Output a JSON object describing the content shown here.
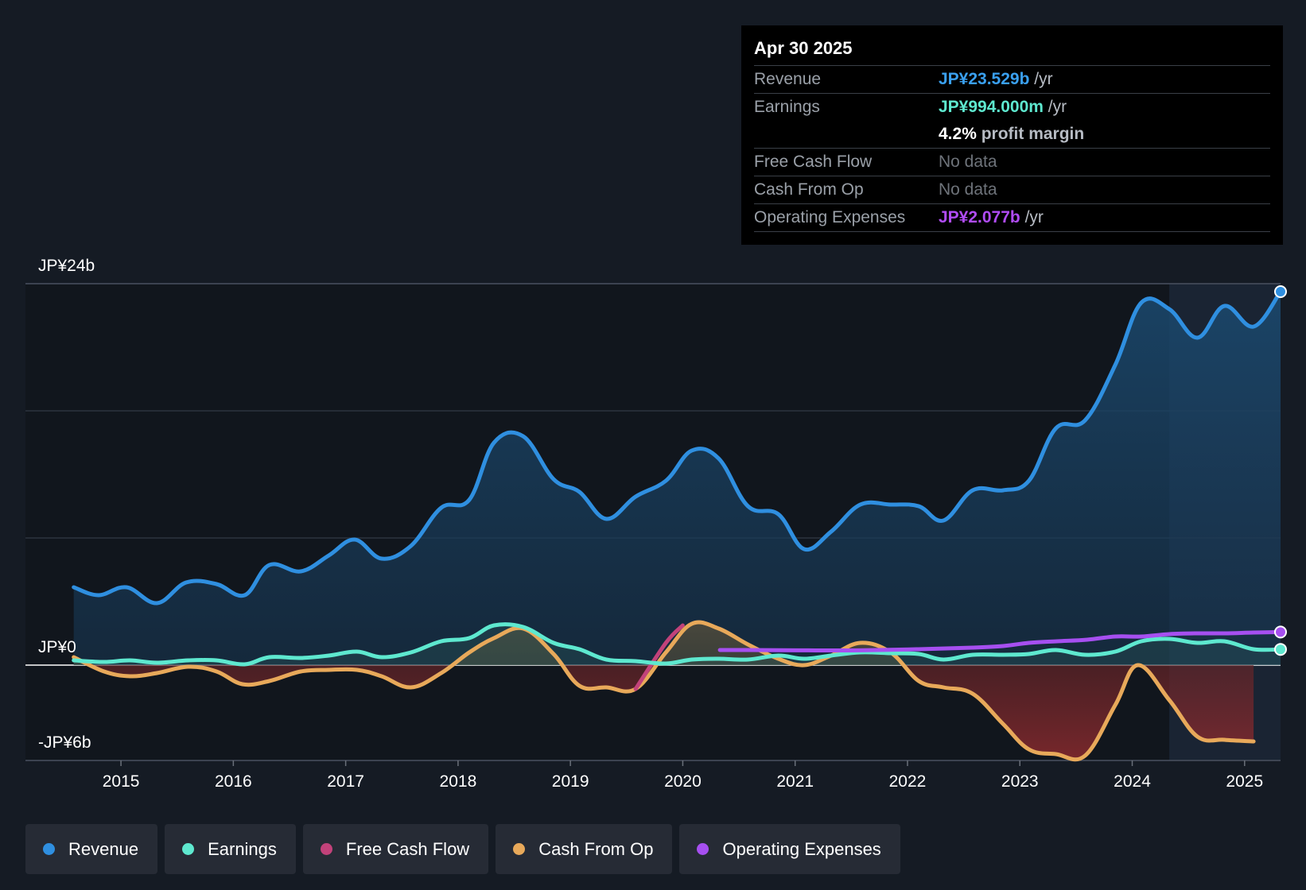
{
  "tooltip": {
    "date": "Apr 30 2025",
    "rows": {
      "revenue": {
        "label": "Revenue",
        "value": "JP¥23.529b",
        "suffix": " /yr",
        "color": "#3aa0f0"
      },
      "earnings": {
        "label": "Earnings",
        "value": "JP¥994.000m",
        "suffix": " /yr",
        "color": "#5ee8cf"
      },
      "margin": {
        "value": "4.2%",
        "suffix": " profit margin"
      },
      "fcf": {
        "label": "Free Cash Flow",
        "value": "No data"
      },
      "cfo": {
        "label": "Cash From Op",
        "value": "No data"
      },
      "opex": {
        "label": "Operating Expenses",
        "value": "JP¥2.077b",
        "suffix": " /yr",
        "color": "#b04cf5"
      }
    }
  },
  "legend": [
    {
      "key": "revenue",
      "label": "Revenue",
      "color": "#2f8fe0"
    },
    {
      "key": "earnings",
      "label": "Earnings",
      "color": "#5ee8cf"
    },
    {
      "key": "fcf",
      "label": "Free Cash Flow",
      "color": "#c2427a"
    },
    {
      "key": "cfo",
      "label": "Cash From Op",
      "color": "#e8a95a"
    },
    {
      "key": "opex",
      "label": "Operating Expenses",
      "color": "#a64ff0"
    }
  ],
  "chart_data": {
    "type": "line",
    "title": "",
    "xlabel": "",
    "ylabel": "",
    "ylim": [
      -6,
      24
    ],
    "y_tick_labels": [
      {
        "value": 24,
        "label": "JP¥24b"
      },
      {
        "value": 0,
        "label": "JP¥0"
      },
      {
        "value": -6,
        "label": "-JP¥6b"
      }
    ],
    "x_ticks": [
      {
        "value": 2015,
        "label": "2015"
      },
      {
        "value": 2016,
        "label": "2016"
      },
      {
        "value": 2017,
        "label": "2017"
      },
      {
        "value": 2018,
        "label": "2018"
      },
      {
        "value": 2019,
        "label": "2019"
      },
      {
        "value": 2020,
        "label": "2020"
      },
      {
        "value": 2021,
        "label": "2021"
      },
      {
        "value": 2022,
        "label": "2022"
      },
      {
        "value": 2023,
        "label": "2023"
      },
      {
        "value": 2024,
        "label": "2024"
      },
      {
        "value": 2025,
        "label": "2025"
      }
    ],
    "xlim": [
      2014.15,
      2025.32
    ],
    "highlight_from": 2024.33,
    "series": [
      {
        "key": "revenue",
        "name": "Revenue",
        "color": "#2f8fe0",
        "points": [
          [
            2014.58,
            4.9
          ],
          [
            2014.8,
            4.4
          ],
          [
            2015.05,
            4.9
          ],
          [
            2015.32,
            3.9
          ],
          [
            2015.58,
            5.2
          ],
          [
            2015.85,
            5.1
          ],
          [
            2016.1,
            4.4
          ],
          [
            2016.32,
            6.3
          ],
          [
            2016.6,
            5.9
          ],
          [
            2016.85,
            6.9
          ],
          [
            2017.08,
            7.9
          ],
          [
            2017.32,
            6.7
          ],
          [
            2017.58,
            7.5
          ],
          [
            2017.85,
            9.9
          ],
          [
            2018.1,
            10.4
          ],
          [
            2018.32,
            14.0
          ],
          [
            2018.58,
            14.4
          ],
          [
            2018.85,
            11.7
          ],
          [
            2019.08,
            10.9
          ],
          [
            2019.32,
            9.2
          ],
          [
            2019.58,
            10.6
          ],
          [
            2019.85,
            11.6
          ],
          [
            2020.08,
            13.5
          ],
          [
            2020.32,
            13.0
          ],
          [
            2020.58,
            10.0
          ],
          [
            2020.85,
            9.5
          ],
          [
            2021.08,
            7.3
          ],
          [
            2021.32,
            8.4
          ],
          [
            2021.58,
            10.1
          ],
          [
            2021.85,
            10.1
          ],
          [
            2022.1,
            10.0
          ],
          [
            2022.32,
            9.1
          ],
          [
            2022.58,
            11.0
          ],
          [
            2022.85,
            11.0
          ],
          [
            2023.08,
            11.6
          ],
          [
            2023.32,
            14.9
          ],
          [
            2023.58,
            15.4
          ],
          [
            2023.85,
            18.9
          ],
          [
            2024.08,
            22.8
          ],
          [
            2024.33,
            22.4
          ],
          [
            2024.58,
            20.6
          ],
          [
            2024.82,
            22.6
          ],
          [
            2025.08,
            21.3
          ],
          [
            2025.32,
            23.5
          ]
        ]
      },
      {
        "key": "earnings",
        "name": "Earnings",
        "color": "#5ee8cf",
        "points": [
          [
            2014.58,
            0.3
          ],
          [
            2014.85,
            0.2
          ],
          [
            2015.08,
            0.3
          ],
          [
            2015.32,
            0.15
          ],
          [
            2015.6,
            0.3
          ],
          [
            2015.85,
            0.3
          ],
          [
            2016.1,
            0.05
          ],
          [
            2016.32,
            0.5
          ],
          [
            2016.6,
            0.45
          ],
          [
            2016.85,
            0.6
          ],
          [
            2017.1,
            0.85
          ],
          [
            2017.32,
            0.5
          ],
          [
            2017.58,
            0.8
          ],
          [
            2017.85,
            1.5
          ],
          [
            2018.1,
            1.7
          ],
          [
            2018.32,
            2.5
          ],
          [
            2018.58,
            2.4
          ],
          [
            2018.85,
            1.4
          ],
          [
            2019.08,
            1.0
          ],
          [
            2019.32,
            0.35
          ],
          [
            2019.58,
            0.25
          ],
          [
            2019.85,
            0.1
          ],
          [
            2020.08,
            0.35
          ],
          [
            2020.32,
            0.4
          ],
          [
            2020.58,
            0.35
          ],
          [
            2020.85,
            0.6
          ],
          [
            2021.08,
            0.4
          ],
          [
            2021.32,
            0.6
          ],
          [
            2021.58,
            0.8
          ],
          [
            2021.85,
            0.75
          ],
          [
            2022.1,
            0.7
          ],
          [
            2022.32,
            0.35
          ],
          [
            2022.58,
            0.65
          ],
          [
            2022.85,
            0.65
          ],
          [
            2023.08,
            0.7
          ],
          [
            2023.32,
            0.95
          ],
          [
            2023.58,
            0.65
          ],
          [
            2023.85,
            0.85
          ],
          [
            2024.08,
            1.5
          ],
          [
            2024.33,
            1.65
          ],
          [
            2024.58,
            1.4
          ],
          [
            2024.82,
            1.5
          ],
          [
            2025.08,
            1.0
          ],
          [
            2025.32,
            0.99
          ]
        ]
      },
      {
        "key": "cfo",
        "name": "Cash From Op",
        "color": "#e8a95a",
        "points": [
          [
            2014.58,
            0.5
          ],
          [
            2014.85,
            -0.4
          ],
          [
            2015.08,
            -0.7
          ],
          [
            2015.32,
            -0.5
          ],
          [
            2015.6,
            -0.1
          ],
          [
            2015.85,
            -0.4
          ],
          [
            2016.08,
            -1.2
          ],
          [
            2016.32,
            -1.0
          ],
          [
            2016.6,
            -0.4
          ],
          [
            2016.85,
            -0.3
          ],
          [
            2017.1,
            -0.3
          ],
          [
            2017.32,
            -0.7
          ],
          [
            2017.58,
            -1.4
          ],
          [
            2017.85,
            -0.5
          ],
          [
            2018.1,
            0.8
          ],
          [
            2018.32,
            1.7
          ],
          [
            2018.58,
            2.3
          ],
          [
            2018.85,
            0.7
          ],
          [
            2019.08,
            -1.3
          ],
          [
            2019.32,
            -1.4
          ],
          [
            2019.58,
            -1.5
          ],
          [
            2019.85,
            0.8
          ],
          [
            2020.08,
            2.6
          ],
          [
            2020.32,
            2.3
          ],
          [
            2020.58,
            1.3
          ],
          [
            2020.85,
            0.4
          ],
          [
            2021.08,
            0.0
          ],
          [
            2021.32,
            0.6
          ],
          [
            2021.58,
            1.4
          ],
          [
            2021.85,
            0.8
          ],
          [
            2022.1,
            -1.0
          ],
          [
            2022.32,
            -1.4
          ],
          [
            2022.58,
            -1.8
          ],
          [
            2022.85,
            -3.7
          ],
          [
            2023.08,
            -5.3
          ],
          [
            2023.32,
            -5.6
          ],
          [
            2023.58,
            -5.7
          ],
          [
            2023.85,
            -2.5
          ],
          [
            2024.05,
            0.0
          ],
          [
            2024.33,
            -2.2
          ],
          [
            2024.58,
            -4.5
          ],
          [
            2024.82,
            -4.7
          ],
          [
            2025.08,
            -4.8
          ]
        ]
      },
      {
        "key": "fcf",
        "name": "Free Cash Flow",
        "color": "#c2427a",
        "points": [
          [
            2019.58,
            -1.5
          ],
          [
            2019.85,
            1.4
          ],
          [
            2020.0,
            2.5
          ]
        ]
      },
      {
        "key": "opex",
        "name": "Operating Expenses",
        "color": "#a64ff0",
        "points": [
          [
            2020.33,
            0.95
          ],
          [
            2020.58,
            0.95
          ],
          [
            2021.08,
            0.93
          ],
          [
            2021.58,
            0.93
          ],
          [
            2022.08,
            1.0
          ],
          [
            2022.58,
            1.1
          ],
          [
            2022.85,
            1.2
          ],
          [
            2023.08,
            1.4
          ],
          [
            2023.33,
            1.5
          ],
          [
            2023.6,
            1.6
          ],
          [
            2023.85,
            1.8
          ],
          [
            2024.08,
            1.8
          ],
          [
            2024.33,
            1.95
          ],
          [
            2024.58,
            2.0
          ],
          [
            2024.82,
            2.0
          ],
          [
            2025.08,
            2.05
          ],
          [
            2025.32,
            2.08
          ]
        ]
      }
    ]
  }
}
